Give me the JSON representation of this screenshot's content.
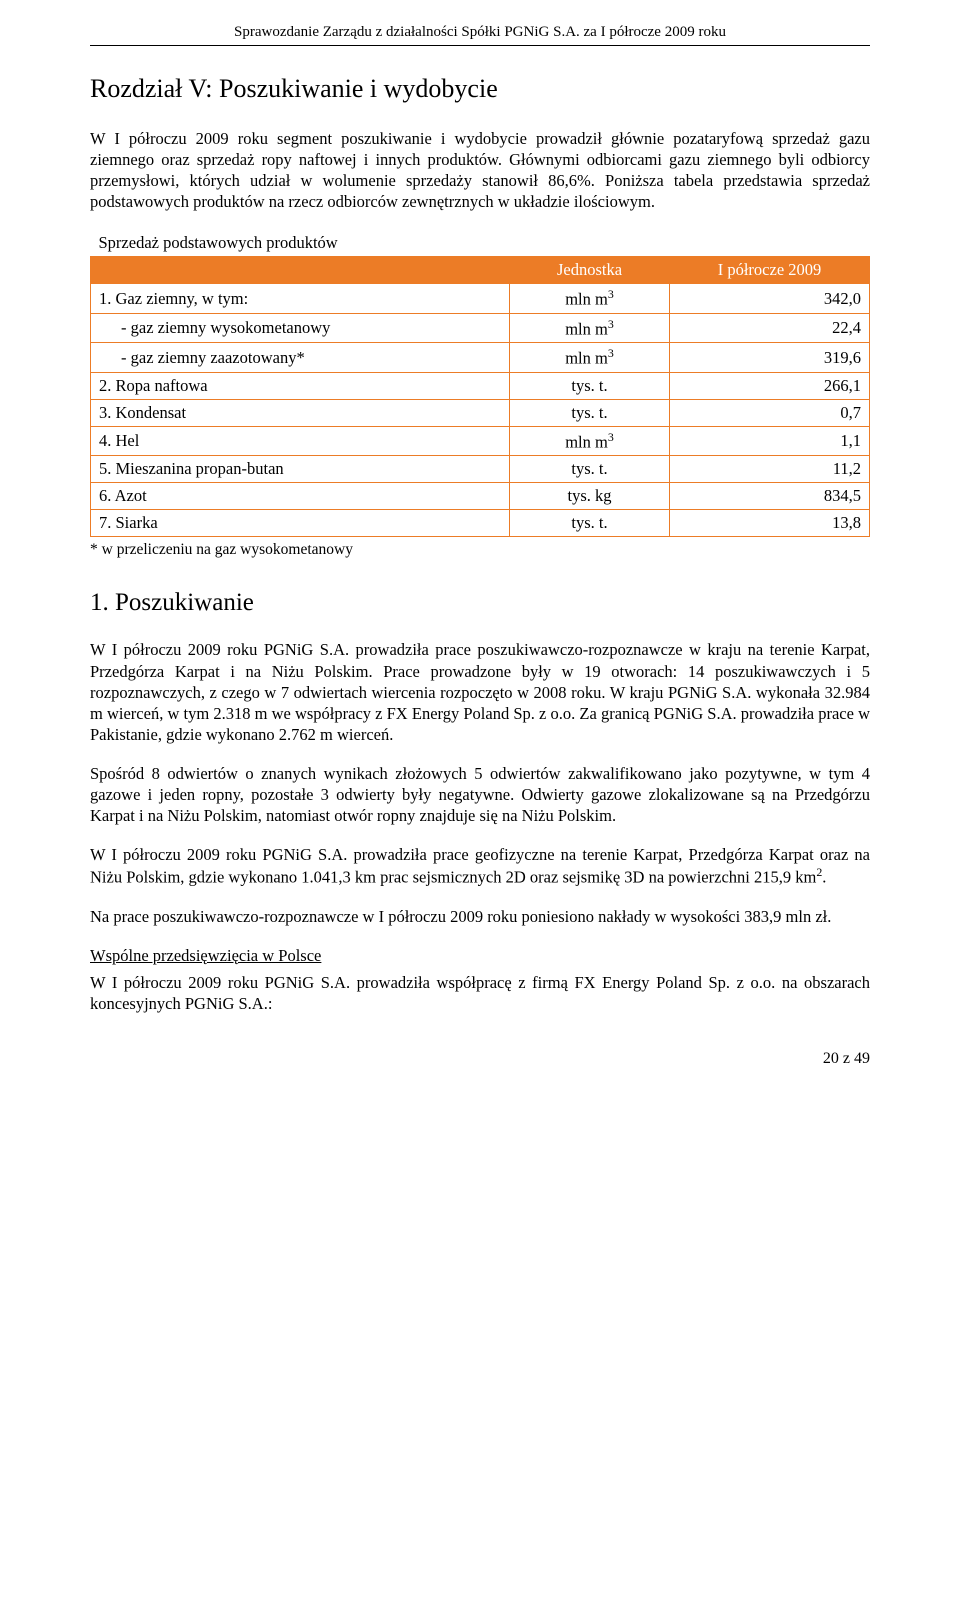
{
  "header": "Sprawozdanie Zarządu z działalności Spółki PGNiG S.A. za I półrocze 2009 roku",
  "chapter_title": "Rozdział V:  Poszukiwanie i wydobycie",
  "intro_para": "W I półroczu 2009 roku segment poszukiwanie i wydobycie prowadził głównie pozataryfową sprzedaż gazu ziemnego oraz sprzedaż ropy naftowej i innych produktów. Głównymi odbiorcami gazu ziemnego byli odbiorcy przemysłowi, których udział w wolumenie sprzedaży stanowił 86,6%. Poniższa tabela przedstawia sprzedaż podstawowych produktów na rzecz odbiorców zewnętrznych w układzie ilościowym.",
  "table": {
    "title": "Sprzedaż podstawowych produktów",
    "col_unit": "Jednostka",
    "col_period": "I półrocze 2009",
    "rows": [
      {
        "label": "1.   Gaz ziemny, w tym:",
        "unit_html": "mln m<sup>3</sup>",
        "value": "342,0",
        "indent": false
      },
      {
        "label": "- gaz ziemny wysokometanowy",
        "unit_html": "mln m<sup>3</sup>",
        "value": "22,4",
        "indent": true
      },
      {
        "label": "- gaz ziemny zaazotowany*",
        "unit_html": "mln m<sup>3</sup>",
        "value": "319,6",
        "indent": true
      },
      {
        "label": "2.   Ropa naftowa",
        "unit_html": "tys. t.",
        "value": "266,1",
        "indent": false
      },
      {
        "label": "3.   Kondensat",
        "unit_html": "tys. t.",
        "value": "0,7",
        "indent": false
      },
      {
        "label": "4.   Hel",
        "unit_html": "mln m<sup>3</sup>",
        "value": "1,1",
        "indent": false
      },
      {
        "label": "5.   Mieszanina propan-butan",
        "unit_html": "tys. t.",
        "value": "11,2",
        "indent": false
      },
      {
        "label": "6.   Azot",
        "unit_html": "tys. kg",
        "value": "834,5",
        "indent": false
      },
      {
        "label": "7.   Siarka",
        "unit_html": "tys. t.",
        "value": "13,8",
        "indent": false
      }
    ],
    "footnote": "* w przeliczeniu na gaz wysokometanowy"
  },
  "section1_title": "1. Poszukiwanie",
  "para1": "W I półroczu 2009 roku PGNiG S.A. prowadziła prace poszukiwawczo-rozpoznawcze w kraju na terenie Karpat, Przedgórza Karpat i na Niżu Polskim. Prace prowadzone były w 19 otworach: 14 poszukiwawczych i 5 rozpoznawczych, z czego w 7 odwiertach wiercenia rozpoczęto w 2008 roku. W kraju PGNiG S.A. wykonała 32.984 m wierceń, w tym 2.318 m we współpracy z FX Energy Poland Sp. z o.o. Za granicą PGNiG S.A. prowadziła prace w Pakistanie, gdzie wykonano 2.762 m wierceń.",
  "para2": "Spośród 8 odwiertów o znanych wynikach złożowych 5 odwiertów zakwalifikowano jako pozytywne, w tym 4 gazowe i jeden ropny, pozostałe 3 odwierty były negatywne. Odwierty gazowe zlokalizowane są na Przedgórzu Karpat i na Niżu Polskim, natomiast otwór ropny znajduje się na Niżu Polskim.",
  "para3_html": "W I półroczu 2009 roku PGNiG S.A. prowadziła prace geofizyczne na terenie Karpat, Przedgórza Karpat oraz na Niżu Polskim, gdzie wykonano 1.041,3 km prac sejsmicznych 2D oraz sejsmikę 3D na powierzchni 215,9 km<sup>2</sup>.",
  "para4": "Na prace poszukiwawczo-rozpoznawcze w I półroczu 2009 roku poniesiono nakłady w wysokości 383,9 mln zł.",
  "subheading": "Wspólne przedsięwzięcia w Polsce",
  "para5": "W I półroczu 2009 roku PGNiG S.A. prowadziła współpracę z firmą FX Energy Poland Sp. z o.o. na obszarach koncesyjnych PGNiG S.A.:",
  "page_number": "20 z 49"
}
